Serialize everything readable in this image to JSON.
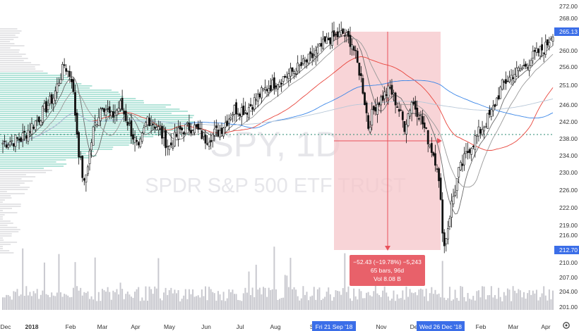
{
  "watermark": {
    "symbol": "SPY, 1D",
    "name": "SPDR S&P 500 ETF TRUST"
  },
  "measure": {
    "line1": "−52.43 (−19.78%) −5,243",
    "line2": "65 bars, 96d",
    "line3": "Vol 8.08 B",
    "start_label": "Fri 21 Sep '18",
    "end_label": "Wed 26 Dec '18",
    "high": 265.1,
    "low": 212.7
  },
  "price_axis": {
    "ticks": [
      "272.00",
      "268.00",
      "265.00",
      "260.00",
      "256.00",
      "251.00",
      "246.00",
      "242.00",
      "238.00",
      "234.00",
      "230.00",
      "226.00",
      "222.00",
      "219.00",
      "216.00",
      "212.70",
      "210.00",
      "207.00",
      "204.00",
      "201.00"
    ],
    "last_price_label": "265.13",
    "low_price_label": "212.70"
  },
  "time_axis": {
    "labels": [
      "Dec",
      "2018",
      "Feb",
      "Mar",
      "Apr",
      "May",
      "Jun",
      "Jul",
      "Aug",
      "Se",
      "Nov",
      "De",
      "Feb",
      "Mar",
      "Apr"
    ]
  },
  "settings_icon": "gear-icon",
  "colors": {
    "up": "#111111",
    "down": "#111111",
    "measure_fill": "#f6c6c9",
    "measure_line": "#e8525b",
    "measure_box": "#e8616a",
    "axis_badge": "#3b6ee8",
    "ma_red": "#e8453c",
    "ma_blue": "#3a86e8",
    "ma_gray": "#6b6b6b",
    "volume_profile": "#93d9c9",
    "dotted_level": "#2a8a70"
  },
  "chart_data": {
    "type": "candlestick",
    "instrument": "SPY",
    "interval": "1D",
    "x_start": "2017-12",
    "x_end": "2019-04",
    "ylim": [
      199,
      274
    ],
    "control_points": [
      {
        "t": 0,
        "p": 237
      },
      {
        "t": 10,
        "p": 238
      },
      {
        "t": 20,
        "p": 243
      },
      {
        "t": 28,
        "p": 248
      },
      {
        "t": 34,
        "p": 256.5
      },
      {
        "t": 38,
        "p": 253
      },
      {
        "t": 42,
        "p": 235
      },
      {
        "t": 45,
        "p": 227
      },
      {
        "t": 50,
        "p": 240
      },
      {
        "t": 55,
        "p": 246.5
      },
      {
        "t": 60,
        "p": 243
      },
      {
        "t": 65,
        "p": 246
      },
      {
        "t": 70,
        "p": 241
      },
      {
        "t": 75,
        "p": 235
      },
      {
        "t": 80,
        "p": 243
      },
      {
        "t": 85,
        "p": 241
      },
      {
        "t": 92,
        "p": 236
      },
      {
        "t": 98,
        "p": 240
      },
      {
        "t": 105,
        "p": 241
      },
      {
        "t": 112,
        "p": 238
      },
      {
        "t": 120,
        "p": 240
      },
      {
        "t": 128,
        "p": 245
      },
      {
        "t": 135,
        "p": 245
      },
      {
        "t": 145,
        "p": 250
      },
      {
        "t": 158,
        "p": 254
      },
      {
        "t": 170,
        "p": 258
      },
      {
        "t": 180,
        "p": 263
      },
      {
        "t": 188,
        "p": 264.5
      },
      {
        "t": 193,
        "p": 262
      },
      {
        "t": 198,
        "p": 253
      },
      {
        "t": 202,
        "p": 241
      },
      {
        "t": 206,
        "p": 246
      },
      {
        "t": 210,
        "p": 248
      },
      {
        "t": 214,
        "p": 250
      },
      {
        "t": 218,
        "p": 246
      },
      {
        "t": 222,
        "p": 241
      },
      {
        "t": 226,
        "p": 247
      },
      {
        "t": 230,
        "p": 244
      },
      {
        "t": 235,
        "p": 238
      },
      {
        "t": 240,
        "p": 232
      },
      {
        "t": 244,
        "p": 213.5
      },
      {
        "t": 247,
        "p": 221
      },
      {
        "t": 252,
        "p": 230
      },
      {
        "t": 258,
        "p": 236
      },
      {
        "t": 264,
        "p": 240
      },
      {
        "t": 270,
        "p": 244
      },
      {
        "t": 276,
        "p": 251
      },
      {
        "t": 282,
        "p": 254
      },
      {
        "t": 288,
        "p": 256
      },
      {
        "t": 294,
        "p": 259
      },
      {
        "t": 300,
        "p": 261
      },
      {
        "t": 304,
        "p": 265
      }
    ],
    "moving_averages": [
      {
        "window": 10,
        "color": "#6b6b6b"
      },
      {
        "window": 20,
        "color": "#9a9a9a"
      },
      {
        "window": 50,
        "color": "#e8453c"
      },
      {
        "window": 100,
        "color": "#3a86e8"
      },
      {
        "window": 200,
        "color": "#b8c8d8"
      }
    ],
    "dotted_level": 239.2,
    "volume_ylim": [
      0,
      1
    ]
  }
}
